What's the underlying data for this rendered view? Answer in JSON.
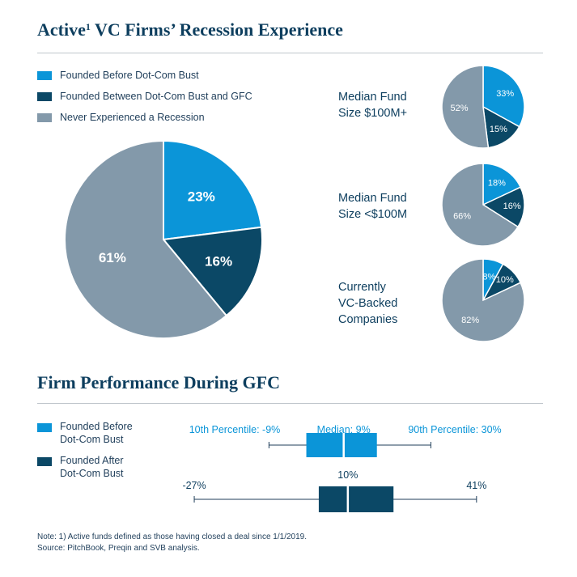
{
  "title": {
    "main_before": "Active",
    "superscript": "1",
    "main_after": " VC Firms’ Recession Experience"
  },
  "colors": {
    "light_blue": "#0b95d8",
    "dark_blue": "#0b4866",
    "grey": "#8399aa",
    "text": "#0d3e5e"
  },
  "legend": [
    {
      "label": "Founded Before Dot-Com Bust",
      "color": "#0b95d8"
    },
    {
      "label": "Founded Between Dot-Com Bust and GFC",
      "color": "#0b4866"
    },
    {
      "label": "Never Experienced a Recession",
      "color": "#8399aa"
    }
  ],
  "chart_data": [
    {
      "type": "pie",
      "slices": [
        {
          "label": "23%",
          "value": 23,
          "color": "#0b95d8"
        },
        {
          "label": "16%",
          "value": 16,
          "color": "#0b4866"
        },
        {
          "label": "61%",
          "value": 61,
          "color": "#8399aa"
        }
      ]
    },
    {
      "type": "pie",
      "title": "Median Fund\nSize $100M+",
      "slices": [
        {
          "label": "33%",
          "value": 33,
          "color": "#0b95d8"
        },
        {
          "label": "15%",
          "value": 15,
          "color": "#0b4866"
        },
        {
          "label": "52%",
          "value": 52,
          "color": "#8399aa"
        }
      ]
    },
    {
      "type": "pie",
      "title": "Median Fund\nSize <$100M",
      "slices": [
        {
          "label": "18%",
          "value": 18,
          "color": "#0b95d8"
        },
        {
          "label": "16%",
          "value": 16,
          "color": "#0b4866"
        },
        {
          "label": "66%",
          "value": 66,
          "color": "#8399aa"
        }
      ]
    },
    {
      "type": "pie",
      "title": "Currently\nVC-Backed\nCompanies",
      "slices": [
        {
          "label": "8%",
          "value": 8,
          "color": "#0b95d8"
        },
        {
          "label": "10%",
          "value": 10,
          "color": "#0b4866"
        },
        {
          "label": "82%",
          "value": 82,
          "color": "#8399aa"
        }
      ]
    },
    {
      "type": "boxplot",
      "title": "Firm Performance During GFC",
      "xlim": [
        -35,
        50
      ],
      "series": [
        {
          "name": "Founded Before\nDot-Com Bust",
          "color": "#0b95d8",
          "p10": -9,
          "p90": 30,
          "median": 9,
          "box_low": 0,
          "box_high": 17,
          "labels": {
            "p10": "10th Percentile: -9%",
            "median": "Median: 9%",
            "p90": "90th Percentile: 30%"
          }
        },
        {
          "name": "Founded After\nDot-Com Bust",
          "color": "#0b4866",
          "p10": -27,
          "p90": 41,
          "median": 10,
          "box_low": 3,
          "box_high": 21,
          "labels": {
            "p10": "-27%",
            "median": "10%",
            "p90": "41%"
          }
        }
      ]
    }
  ],
  "section2_title": "Firm Performance During GFC",
  "note": {
    "line1": "Note: 1) Active funds defined as those having closed a deal since 1/1/2019.",
    "line2": "Source: PitchBook, Preqin and SVB analysis."
  }
}
